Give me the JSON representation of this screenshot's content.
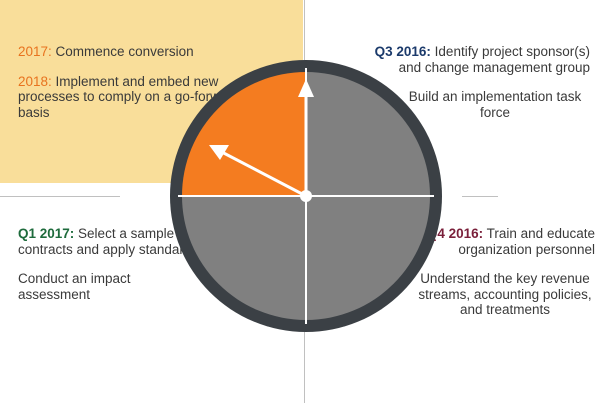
{
  "quadrants": {
    "top_left": {
      "items": [
        {
          "label": "2017:",
          "text": " Commence conversion"
        },
        {
          "label": "2018:",
          "text": " Implement and embed new processes to comply on a go-forward basis"
        }
      ]
    },
    "top_right": {
      "items": [
        {
          "label": "Q3 2016:",
          "text": " Identify project sponsor(s) and change management group"
        }
      ],
      "extra": "Build an implementation task force"
    },
    "bottom_left": {
      "items": [
        {
          "label": "Q1 2017:",
          "text": " Select a sample of contracts and apply standard"
        }
      ],
      "extra": "Conduct an impact assessment"
    },
    "bottom_right": {
      "items": [
        {
          "label": "Q4 2016:",
          "text": " Train and educate organization personnel"
        }
      ],
      "extra": "Understand the key revenue streams, accounting policies, and treatments"
    }
  },
  "colors": {
    "highlight_quadrant": "#f47c20",
    "quadrant": "#808080",
    "rim": "#3b4045",
    "panel": "#f9de9a",
    "hands": "#ffffff"
  }
}
